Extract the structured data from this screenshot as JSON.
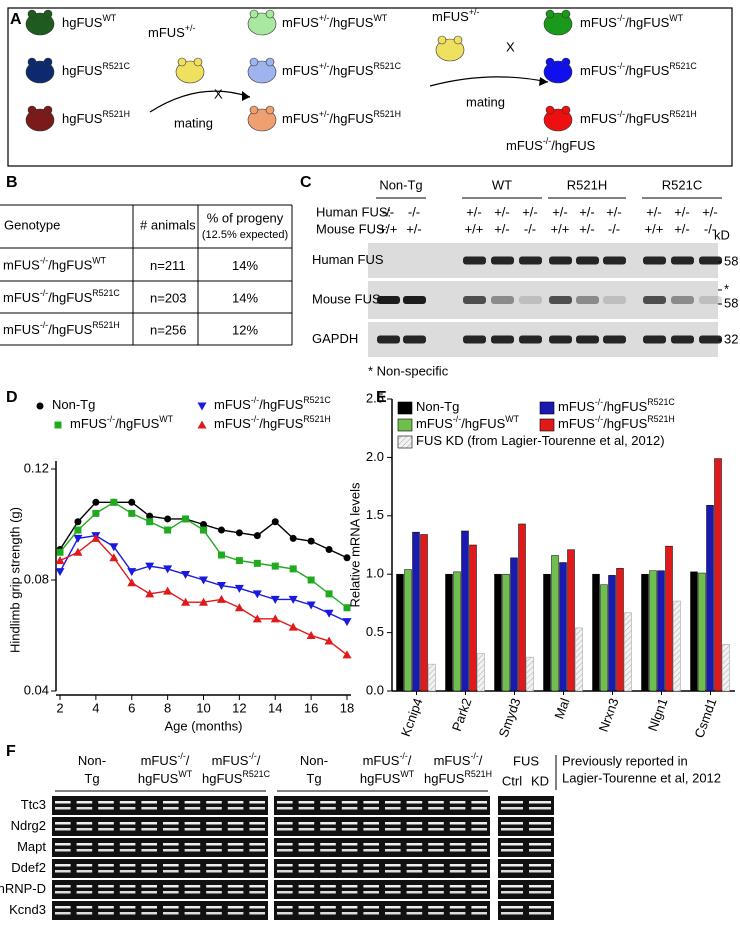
{
  "panel_labels": [
    "A",
    "B",
    "C",
    "D",
    "E",
    "F"
  ],
  "panel_a": {
    "parents": [
      [
        "hgFUS",
        "WT"
      ],
      [
        "hgFUS",
        "R521C"
      ],
      [
        "hgFUS",
        "R521H"
      ]
    ],
    "cross1": [
      "mFUS",
      "+/-"
    ],
    "x1": "X",
    "mating1": "mating",
    "f1": [
      [
        "mFUS",
        "+/-",
        "/hgFUS",
        "WT"
      ],
      [
        "mFUS",
        "+/-",
        "/hgFUS",
        "R521C"
      ],
      [
        "mFUS",
        "+/-",
        "/hgFUS",
        "R521H"
      ]
    ],
    "cross2": [
      "mFUS",
      "+/-"
    ],
    "x2": "X",
    "mating2": "mating",
    "f2": [
      [
        "mFUS",
        "-/-",
        "/hgFUS",
        "WT"
      ],
      [
        "mFUS",
        "-/-",
        "/hgFUS",
        "R521C"
      ],
      [
        "mFUS",
        "-/-",
        "/hgFUS",
        "R521H"
      ]
    ],
    "result": [
      "mFUS",
      "-/-",
      "/hgFUS"
    ]
  },
  "table": {
    "col1": "Genotype",
    "col2": "# animals",
    "col3": "% of progeny",
    "col3_note": "(12.5% expected)",
    "rows": [
      {
        "genotype": [
          "mFUS",
          "-/-",
          "/hgFUS",
          "WT"
        ],
        "n": "n=211",
        "pct": "14%"
      },
      {
        "genotype": [
          "mFUS",
          "-/-",
          "/hgFUS",
          "R521C"
        ],
        "n": "n=203",
        "pct": "14%"
      },
      {
        "genotype": [
          "mFUS",
          "-/-",
          "/hgFUS",
          "R521H"
        ],
        "n": "n=256",
        "pct": "12%"
      }
    ]
  },
  "blot": {
    "groups": [
      "Non-Tg",
      "WT",
      "R521H",
      "R521C"
    ],
    "human_label": "Human FUS:",
    "mouse_label": "Mouse FUS:",
    "human": [
      "-/-",
      "-/-",
      "+/-",
      "+/-",
      "+/-",
      "+/-",
      "+/-",
      "+/-",
      "+/-",
      "+/-",
      "+/-"
    ],
    "mouse": [
      "+/+",
      "+/-",
      "+/+",
      "+/-",
      "-/-",
      "+/+",
      "+/-",
      "-/-",
      "+/+",
      "+/-",
      "-/-"
    ],
    "rows": [
      "Human FUS",
      "Mouse FUS",
      "GAPDH"
    ],
    "kd": "kD",
    "markers": [
      "58",
      "*",
      "58",
      "32"
    ],
    "note": "* Non-specific"
  },
  "chart_data": [
    {
      "type": "line",
      "x": [
        2,
        3,
        4,
        5,
        6,
        7,
        8,
        9,
        10,
        11,
        12,
        13,
        14,
        15,
        16,
        17,
        18
      ],
      "xlim": [
        2,
        18
      ],
      "xticks": [
        2,
        4,
        6,
        8,
        10,
        12,
        14,
        16,
        18
      ],
      "ylim": [
        0.04,
        0.12
      ],
      "yticks": [
        0.04,
        0.08,
        0.12
      ],
      "xlabel": "Age (months)",
      "ylabel": "Hindlimb grip strength (g)",
      "series": [
        {
          "name": [
            "Non-Tg"
          ],
          "color": "#000000",
          "marker": "circle",
          "values": [
            0.091,
            0.101,
            0.108,
            0.108,
            0.108,
            0.103,
            0.102,
            0.102,
            0.1,
            0.098,
            0.097,
            0.096,
            0.101,
            0.095,
            0.094,
            0.091,
            0.088
          ]
        },
        {
          "name": [
            "mFUS",
            "-/-",
            "/hgFUS",
            "R521C"
          ],
          "color": "#1a1adf",
          "marker": "triangle-down",
          "values": [
            0.083,
            0.095,
            0.096,
            0.092,
            0.083,
            0.085,
            0.084,
            0.082,
            0.08,
            0.078,
            0.077,
            0.075,
            0.073,
            0.073,
            0.071,
            0.068,
            0.065
          ]
        },
        {
          "name": [
            "mFUS",
            "-/-",
            "/hgFUS",
            "WT"
          ],
          "color": "#1faa1f",
          "marker": "square",
          "values": [
            0.09,
            0.098,
            0.104,
            0.108,
            0.104,
            0.101,
            0.098,
            0.102,
            0.098,
            0.089,
            0.087,
            0.086,
            0.085,
            0.084,
            0.08,
            0.075,
            0.07
          ]
        },
        {
          "name": [
            "mFUS",
            "-/-",
            "/hgFUS",
            "R521H"
          ],
          "color": "#e01a1a",
          "marker": "triangle-up",
          "values": [
            0.087,
            0.09,
            0.095,
            0.088,
            0.079,
            0.075,
            0.076,
            0.072,
            0.072,
            0.073,
            0.07,
            0.066,
            0.066,
            0.063,
            0.06,
            0.058,
            0.053
          ]
        }
      ]
    },
    {
      "type": "bar",
      "categories": [
        "Kcnip4",
        "Park2",
        "Smyd3",
        "Mal",
        "Nrxn3",
        "Nlgn1",
        "Csmd1"
      ],
      "ylim": [
        0,
        2.5
      ],
      "yticks": [
        {
          "value": 0,
          "label": "0.0"
        },
        0.5,
        {
          "value": 1,
          "label": "1.0"
        },
        1.5,
        {
          "value": 2,
          "label": "2.0"
        },
        2.5
      ],
      "ylabel": "Relative mRNA levels",
      "series": [
        {
          "name": [
            "Non-Tg"
          ],
          "color": "#000000",
          "values": [
            1.0,
            1.0,
            1.0,
            1.0,
            1.0,
            1.0,
            1.02
          ]
        },
        {
          "name": [
            "mFUS",
            "-/-",
            "/hgFUS",
            "WT"
          ],
          "color": "#6fbf4f",
          "values": [
            1.04,
            1.02,
            1.0,
            1.16,
            0.91,
            1.03,
            1.01
          ]
        },
        {
          "name": [
            "mFUS",
            "-/-",
            "/hgFUS",
            "R521C"
          ],
          "color": "#1a1ab0",
          "values": [
            1.36,
            1.37,
            1.14,
            1.1,
            0.99,
            1.03,
            1.59
          ]
        },
        {
          "name": [
            "mFUS",
            "-/-",
            "/hgFUS",
            "R521H"
          ],
          "color": "#e01a1a",
          "values": [
            1.34,
            1.25,
            1.43,
            1.21,
            1.05,
            1.24,
            1.99
          ]
        },
        {
          "name": [
            "FUS KD (from Lagier-Tourenne et al, 2012)"
          ],
          "color": "#e6e6e6",
          "hatch": true,
          "values": [
            0.23,
            0.32,
            0.29,
            0.54,
            0.67,
            0.77,
            0.4
          ]
        }
      ]
    }
  ],
  "gel": {
    "groups": [
      [
        [
          "Non-"
        ],
        [
          "Tg"
        ]
      ],
      [
        [
          "mFUS",
          "-/-",
          "/"
        ],
        [
          "hgFUS",
          "WT"
        ]
      ],
      [
        [
          "mFUS",
          "-/-",
          "/"
        ],
        [
          "hgFUS",
          "R521C"
        ]
      ],
      [
        [
          "Non-"
        ],
        [
          "Tg"
        ]
      ],
      [
        [
          "mFUS",
          "-/-",
          "/"
        ],
        [
          "hgFUS",
          "WT"
        ]
      ],
      [
        [
          "mFUS",
          "-/-",
          "/"
        ],
        [
          "hgFUS",
          "R521H"
        ]
      ]
    ],
    "genes": [
      "Ttc3",
      "Ndrg2",
      "Mapt",
      "Ddef2",
      "hnRNP-D",
      "Kcnd3"
    ],
    "fus": "FUS",
    "ctrl": "Ctrl",
    "kd": "KD",
    "note": [
      "Previously reported in",
      "Lagier-Tourenne et al, 2012"
    ]
  }
}
